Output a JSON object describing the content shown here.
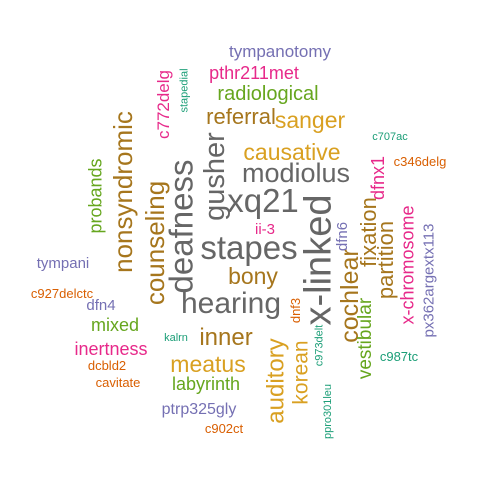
{
  "palette": {
    "gray": "#666666",
    "orange": "#d9a021",
    "brown": "#a6761d",
    "purple": "#7570b3",
    "magenta": "#e7298a",
    "green": "#66a61e",
    "teal": "#1b9e77",
    "rust": "#d95f02"
  },
  "words": [
    {
      "text": "x-linked",
      "color": "gray"
    },
    {
      "text": "hearing",
      "color": "gray"
    },
    {
      "text": "stapes",
      "color": "gray"
    },
    {
      "text": "deafness",
      "color": "gray"
    },
    {
      "text": "xq21",
      "color": "gray"
    },
    {
      "text": "modiolus",
      "color": "gray"
    },
    {
      "text": "gusher",
      "color": "gray"
    },
    {
      "text": "cochlear",
      "color": "brown"
    },
    {
      "text": "counseling",
      "color": "brown"
    },
    {
      "text": "nonsyndromic",
      "color": "brown"
    },
    {
      "text": "bony",
      "color": "brown"
    },
    {
      "text": "inner",
      "color": "brown"
    },
    {
      "text": "auditory",
      "color": "orange"
    },
    {
      "text": "korean",
      "color": "orange"
    },
    {
      "text": "meatus",
      "color": "orange"
    },
    {
      "text": "causative",
      "color": "orange"
    },
    {
      "text": "sanger",
      "color": "orange"
    },
    {
      "text": "referral",
      "color": "brown"
    },
    {
      "text": "vestibular",
      "color": "green"
    },
    {
      "text": "fixation",
      "color": "brown"
    },
    {
      "text": "partition",
      "color": "brown"
    },
    {
      "text": "x-chromosome",
      "color": "magenta"
    },
    {
      "text": "radiological",
      "color": "green"
    },
    {
      "text": "labyrinth",
      "color": "green"
    },
    {
      "text": "probands",
      "color": "green"
    },
    {
      "text": "mixed",
      "color": "green"
    },
    {
      "text": "inertness",
      "color": "magenta"
    },
    {
      "text": "pthr211met",
      "color": "magenta"
    },
    {
      "text": "c772delg",
      "color": "magenta"
    },
    {
      "text": "dfnx1",
      "color": "magenta"
    },
    {
      "text": "ii-3",
      "color": "magenta"
    },
    {
      "text": "tympanotomy",
      "color": "purple"
    },
    {
      "text": "ptrp325gly",
      "color": "purple"
    },
    {
      "text": "px362argextx113",
      "color": "purple"
    },
    {
      "text": "tympani",
      "color": "purple"
    },
    {
      "text": "dfn4",
      "color": "purple"
    },
    {
      "text": "dfn6",
      "color": "purple"
    },
    {
      "text": "c927delctc",
      "color": "rust"
    },
    {
      "text": "dcbld2",
      "color": "rust"
    },
    {
      "text": "cavitate",
      "color": "rust"
    },
    {
      "text": "c902ct",
      "color": "rust"
    },
    {
      "text": "c346delg",
      "color": "rust"
    },
    {
      "text": "dnf3",
      "color": "rust"
    },
    {
      "text": "c707ac",
      "color": "teal"
    },
    {
      "text": "c987tc",
      "color": "teal"
    },
    {
      "text": "stapedial",
      "color": "teal"
    },
    {
      "text": "kalrn",
      "color": "teal"
    },
    {
      "text": "c973delt",
      "color": "teal"
    },
    {
      "text": "ppro301leu",
      "color": "teal"
    }
  ]
}
